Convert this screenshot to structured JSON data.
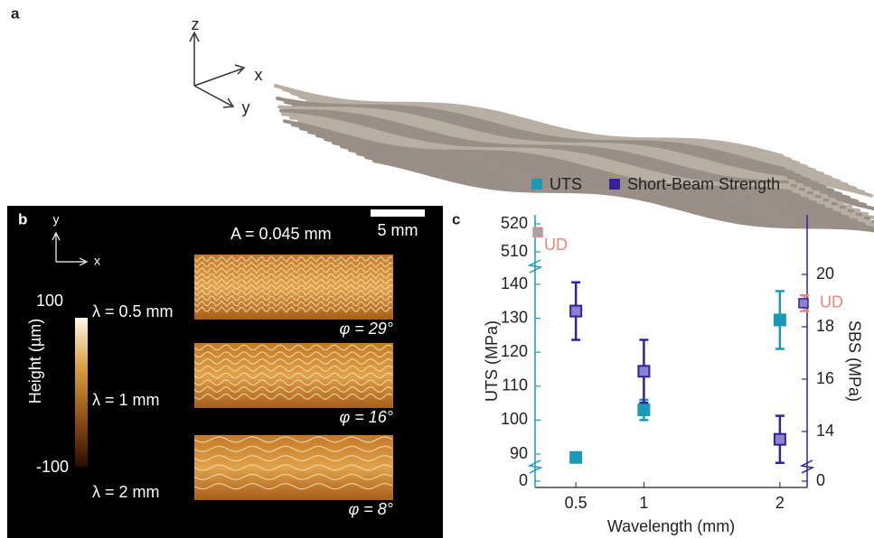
{
  "panel_a": {
    "label": "a",
    "axes": [
      "z",
      "x",
      "y"
    ]
  },
  "panel_b": {
    "label": "b",
    "axes": [
      "y",
      "x"
    ],
    "scale_bar": "5 mm",
    "amplitude": "A = 0.045 mm",
    "colorbar": {
      "title": "Height (µm)",
      "max": "100",
      "min": "-100"
    },
    "samples": [
      {
        "wavelength": "λ = 0.5 mm",
        "angle": "φ = 29°"
      },
      {
        "wavelength": "λ = 1 mm",
        "angle": "φ = 16°"
      },
      {
        "wavelength": "λ = 2 mm",
        "angle": "φ = 8°"
      }
    ]
  },
  "chart_data": {
    "type": "scatter",
    "panel_label": "c",
    "x_label": "Wavelength (mm)",
    "y_label": "UTS (MPa)",
    "y2_label": "SBS (MPa)",
    "xlim": [
      0.2,
      2.2
    ],
    "xticks": [
      0.5,
      1,
      2
    ],
    "ylim": [
      0,
      523
    ],
    "yticks": [
      0,
      90,
      100,
      110,
      120,
      130,
      140,
      510,
      520
    ],
    "y2lim": [
      0,
      22.3
    ],
    "y2ticks": [
      0,
      14,
      16,
      18,
      20
    ],
    "series": [
      {
        "name": "UTS",
        "color": "#1b9ab8",
        "x": [
          0.5,
          1,
          2
        ],
        "values": [
          89,
          103,
          129.5
        ],
        "errors": [
          null,
          3,
          8.5
        ]
      },
      {
        "name": "Short-Beam Strength",
        "color": "#35209a",
        "axis": "y2",
        "x": [
          0.5,
          1,
          2
        ],
        "values": [
          18.6,
          16.3,
          13.7
        ],
        "errors": [
          1.1,
          1.2,
          0.9
        ]
      }
    ],
    "ud": {
      "label": "UD",
      "color": "#e8877a",
      "uts": 517,
      "sbs": 18.9,
      "sbs_error": 0.3
    }
  }
}
